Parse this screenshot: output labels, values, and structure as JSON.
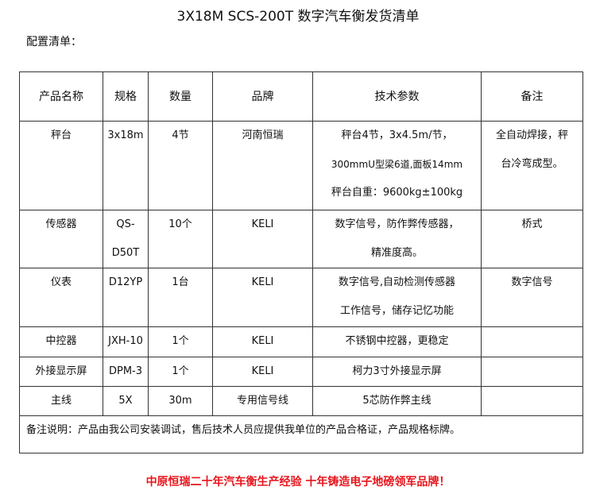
{
  "title": "3X18M SCS-200T 数字汽车衡发货清单",
  "subtitle": "配置清单：",
  "table": {
    "headers": [
      "产品名称",
      "规格",
      "数量",
      "品牌",
      "技术参数",
      "备注"
    ],
    "rows": [
      {
        "name": "秤台",
        "spec": "3x18m",
        "qty": "4节",
        "brand": "河南恒瑞",
        "params": [
          "秤台4节，3x4.5m/节，",
          "300mmU型梁6道,面板14mm",
          "秤台自重：9600kg±100kg"
        ],
        "remark": [
          "全自动焊接，秤",
          "台冷弯成型。"
        ]
      },
      {
        "name": "传感器",
        "spec": "QS-D50T",
        "qty": "10个",
        "brand": "KELI",
        "params": [
          "数字信号，防作弊传感器，",
          "精准度高。"
        ],
        "remark": [
          "桥式"
        ]
      },
      {
        "name": "仪表",
        "spec": "D12YP",
        "qty": "1台",
        "brand": "KELI",
        "params": [
          "数字信号,自动检测传感器",
          "工作信号，储存记忆功能"
        ],
        "remark": [
          "数字信号"
        ]
      },
      {
        "name": "中控器",
        "spec": "JXH-10",
        "qty": "1个",
        "brand": "KELI",
        "params": [
          "不锈钢中控器，更稳定"
        ],
        "remark": []
      },
      {
        "name": "外接显示屏",
        "spec": "DPM-3",
        "qty": "1个",
        "brand": "KELI",
        "params": [
          "柯力3寸外接显示屏"
        ],
        "remark": []
      },
      {
        "name": "主线",
        "spec": "5X",
        "qty": "30m",
        "brand": "专用信号线",
        "params": [
          "5芯防作弊主线"
        ],
        "remark": []
      }
    ],
    "note": "备注说明：产品由我公司安装调试，售后技术人员应提供我单位的产品合格证，产品规格标牌。"
  },
  "slogan": "中原恒瑞二十年汽车衡生产经验 十年铸造电子地磅领军品牌！",
  "colors": {
    "slogan": "#e8141b"
  }
}
